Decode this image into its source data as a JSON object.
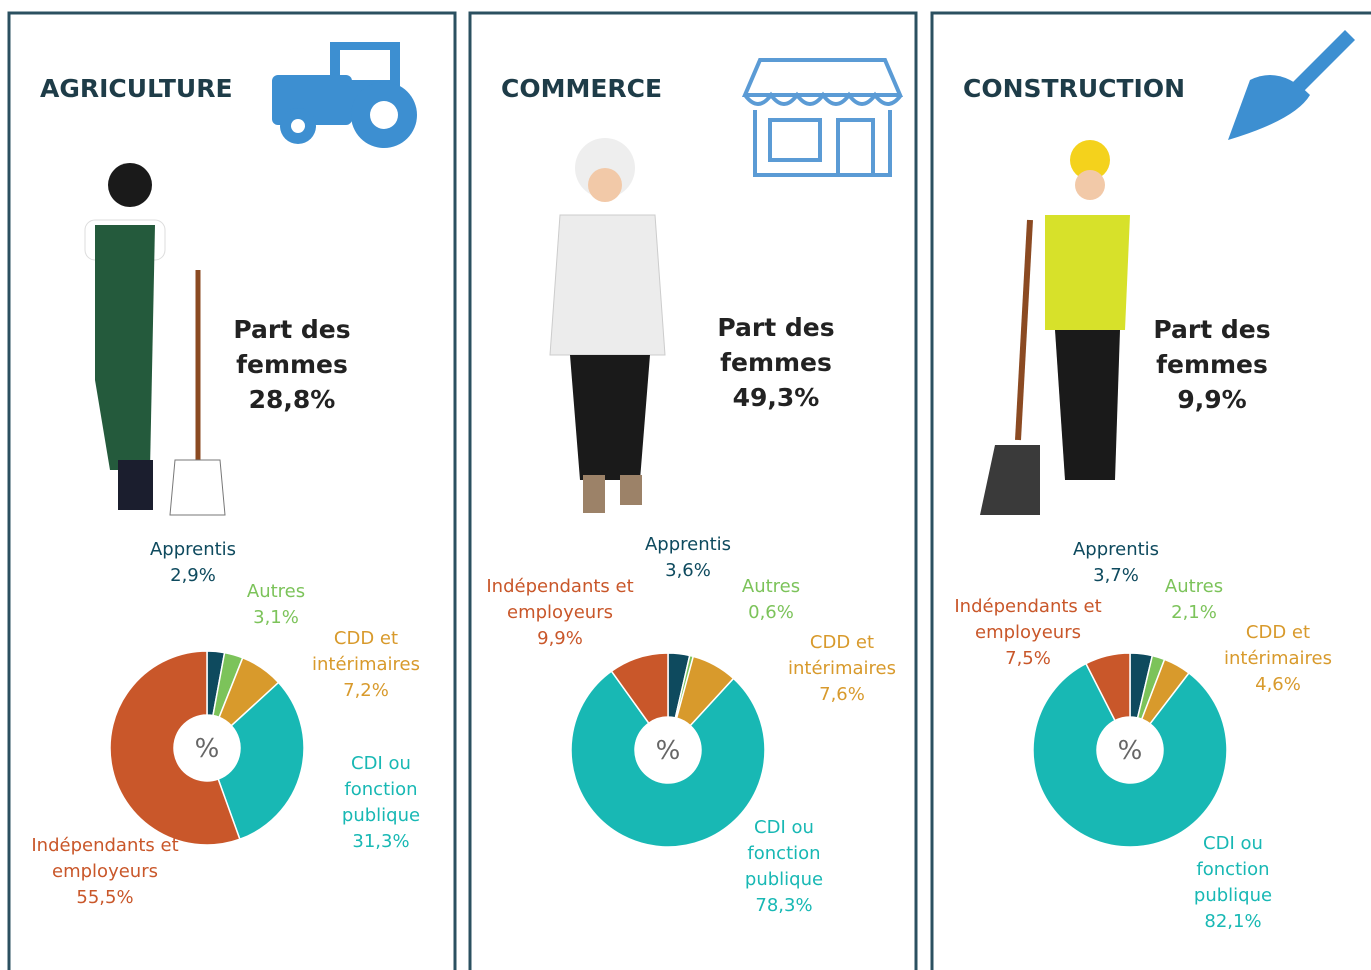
{
  "chart_data": [
    {
      "type": "pie",
      "title": "AGRICULTURE",
      "subtitle": "Part des femmes",
      "highlight": "28,8%",
      "center_label": "%",
      "categories": [
        "Apprentis",
        "Autres",
        "CDD et intérimaires",
        "CDI ou fonction publique",
        "Indépendants et employeurs"
      ],
      "values": [
        2.9,
        3.1,
        7.2,
        31.3,
        55.5
      ],
      "value_labels": [
        "2,9%",
        "3,1%",
        "7,2%",
        "31,3%",
        "55,5%"
      ],
      "colors": [
        "#0e4a5e",
        "#7cc35a",
        "#d89a2c",
        "#18b8b4",
        "#c9572a"
      ]
    },
    {
      "type": "pie",
      "title": "COMMERCE",
      "subtitle": "Part des femmes",
      "highlight": "49,3%",
      "center_label": "%",
      "categories": [
        "Apprentis",
        "Autres",
        "CDD et intérimaires",
        "CDI ou fonction publique",
        "Indépendants et employeurs"
      ],
      "values": [
        3.6,
        0.6,
        7.6,
        78.3,
        9.9
      ],
      "value_labels": [
        "3,6%",
        "0,6%",
        "7,6%",
        "78,3%",
        "9,9%"
      ],
      "colors": [
        "#0e4a5e",
        "#7cc35a",
        "#d89a2c",
        "#18b8b4",
        "#c9572a"
      ]
    },
    {
      "type": "pie",
      "title": "CONSTRUCTION",
      "subtitle": "Part des femmes",
      "highlight": "9,9%",
      "center_label": "%",
      "categories": [
        "Apprentis",
        "Autres",
        "CDD et intérimaires",
        "CDI ou fonction publique",
        "Indépendants et employeurs"
      ],
      "values": [
        3.7,
        2.1,
        4.6,
        82.1,
        7.5
      ],
      "value_labels": [
        "3,7%",
        "2,1%",
        "4,6%",
        "82,1%",
        "7,5%"
      ],
      "colors": [
        "#0e4a5e",
        "#7cc35a",
        "#d89a2c",
        "#18b8b4",
        "#c9572a"
      ]
    }
  ]
}
